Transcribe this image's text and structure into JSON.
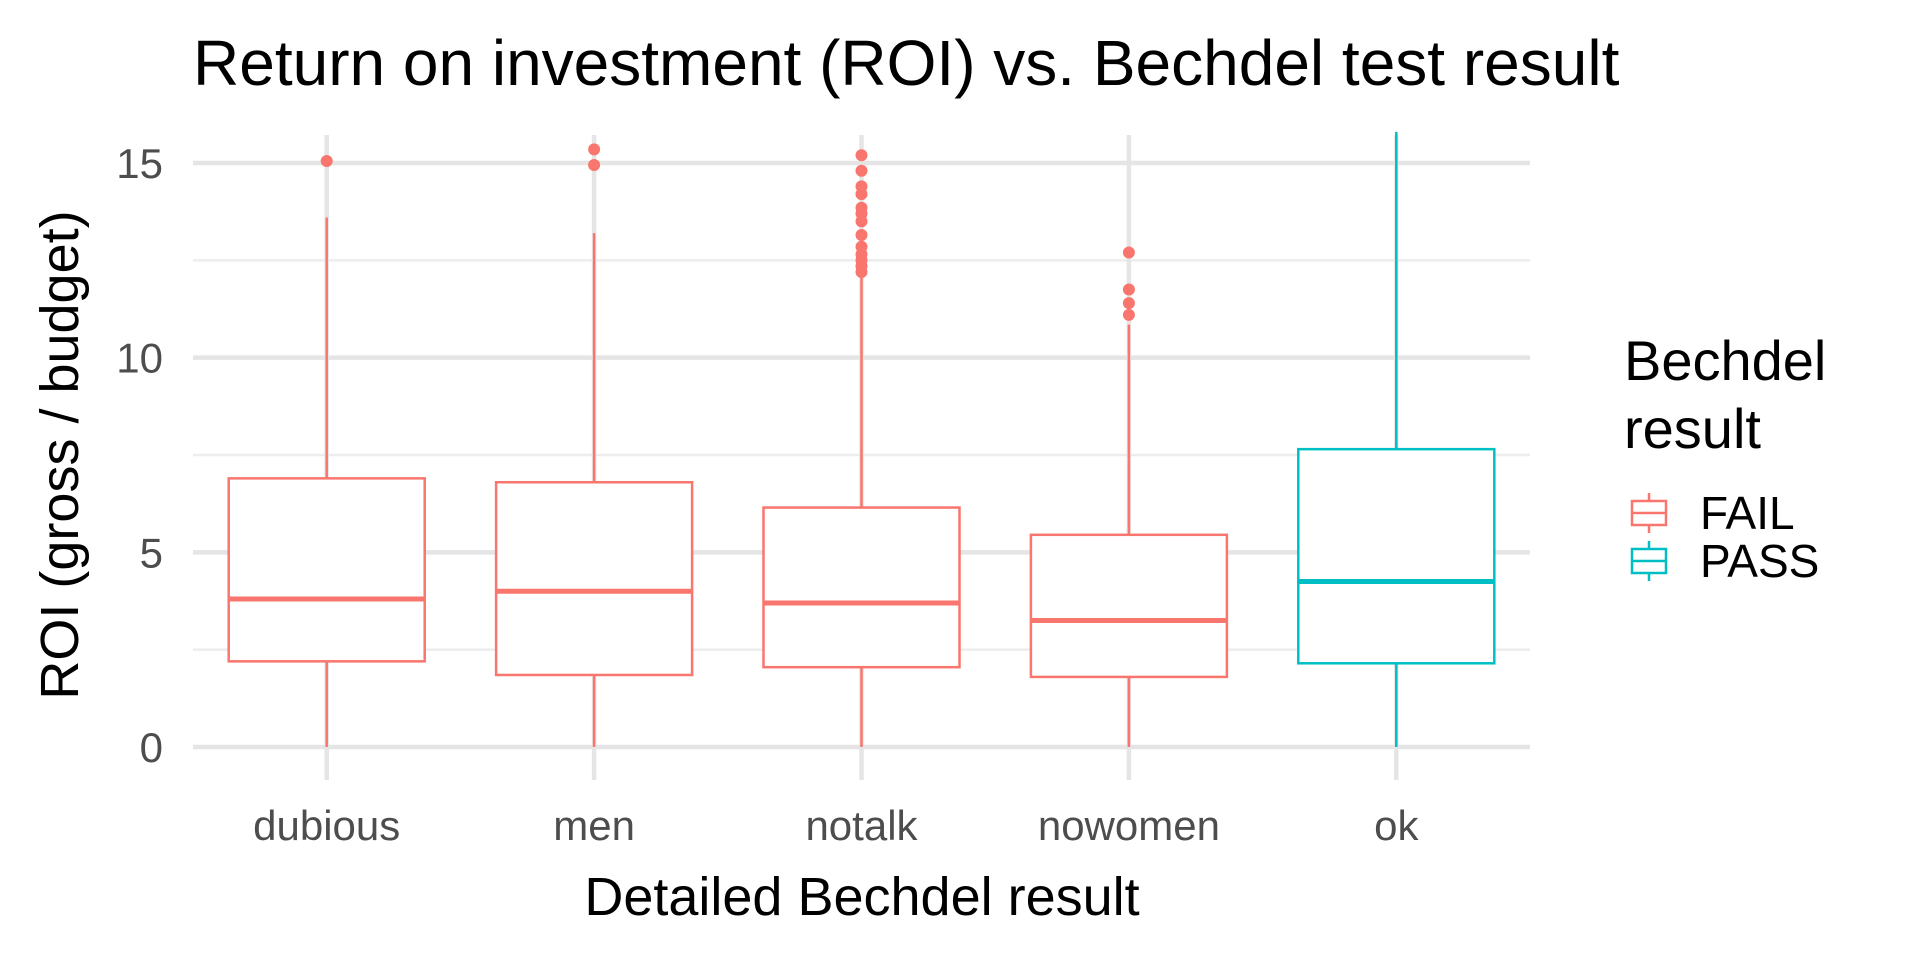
{
  "chart_data": {
    "type": "boxplot",
    "title": "Return on investment (ROI) vs. Bechdel test result",
    "xlabel": "Detailed Bechdel result",
    "ylabel": "ROI (gross / budget)",
    "ylim": [
      -0.7,
      15.8
    ],
    "yticks": [
      0,
      5,
      10,
      15
    ],
    "grid": true,
    "legend": {
      "title": "Bechdel\nresult",
      "position": "right",
      "entries": [
        {
          "label": "FAIL",
          "color": "#F8766D"
        },
        {
          "label": "PASS",
          "color": "#00BFC4"
        }
      ]
    },
    "categories": [
      "dubious",
      "men",
      "notalk",
      "nowomen",
      "ok"
    ],
    "boxes": [
      {
        "category": "dubious",
        "group": "FAIL",
        "min": 0.0,
        "q1": 2.2,
        "median": 3.8,
        "q3": 6.9,
        "max": 13.6,
        "outliers": [
          15.05
        ]
      },
      {
        "category": "men",
        "group": "FAIL",
        "min": 0.0,
        "q1": 1.85,
        "median": 4.0,
        "q3": 6.8,
        "max": 13.2,
        "outliers": [
          14.95,
          15.35
        ]
      },
      {
        "category": "notalk",
        "group": "FAIL",
        "min": 0.0,
        "q1": 2.05,
        "median": 3.7,
        "q3": 6.15,
        "max": 12.1,
        "outliers": [
          12.2,
          12.35,
          12.5,
          12.65,
          12.85,
          13.15,
          13.5,
          13.7,
          13.85,
          14.2,
          14.4,
          14.8,
          15.2
        ]
      },
      {
        "category": "nowomen",
        "group": "FAIL",
        "min": 0.0,
        "q1": 1.8,
        "median": 3.25,
        "q3": 5.45,
        "max": 10.85,
        "outliers": [
          11.1,
          11.4,
          11.75,
          12.7
        ]
      },
      {
        "category": "ok",
        "group": "PASS",
        "min": 0.0,
        "q1": 2.15,
        "median": 4.25,
        "q3": 7.65,
        "max": 15.8,
        "outliers": []
      }
    ]
  }
}
